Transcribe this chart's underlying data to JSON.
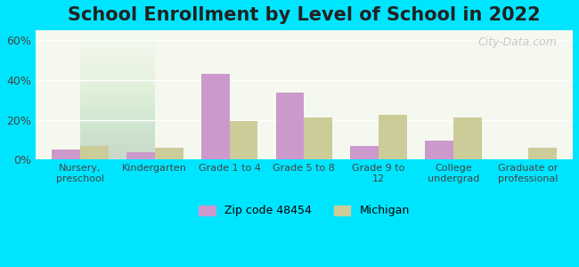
{
  "title": "School Enrollment by Level of School in 2022",
  "categories": [
    "Nursery,\npreschool",
    "Kindergarten",
    "Grade 1 to 4",
    "Grade 5 to 8",
    "Grade 9 to\n12",
    "College\nundergrad",
    "Graduate or\nprofessional"
  ],
  "zip_values": [
    5.0,
    3.5,
    43.0,
    33.5,
    7.0,
    9.5,
    0.0
  ],
  "michigan_values": [
    7.0,
    6.0,
    19.5,
    21.0,
    22.5,
    21.0,
    6.0
  ],
  "zip_color": "#cc99cc",
  "michigan_color": "#cccc99",
  "background_outer": "#00e5ff",
  "background_inner": "#f5f8ee",
  "ylim": [
    0,
    65
  ],
  "yticks": [
    0,
    20,
    40,
    60
  ],
  "ytick_labels": [
    "0%",
    "20%",
    "40%",
    "60%"
  ],
  "zip_label": "Zip code 48454",
  "michigan_label": "Michigan",
  "watermark": "City-Data.com",
  "bar_width": 0.38,
  "title_fontsize": 15
}
